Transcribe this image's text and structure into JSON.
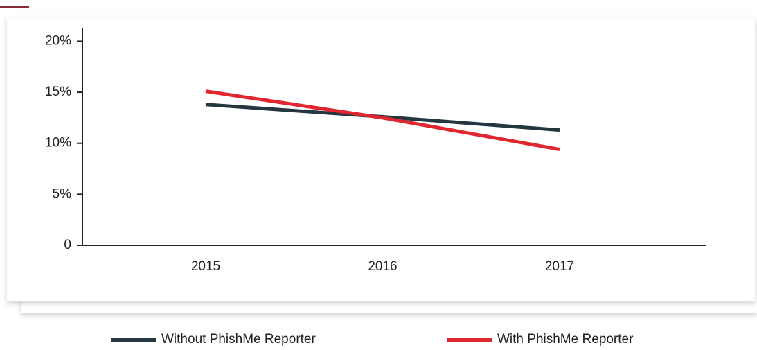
{
  "chart_data": {
    "type": "line",
    "categories": [
      "2015",
      "2016",
      "2017"
    ],
    "series": [
      {
        "name": "Without PhishMe Reporter",
        "color": "#243640",
        "values": [
          13.8,
          12.6,
          11.3
        ]
      },
      {
        "name": "With PhishMe Reporter",
        "color": "#e0262f",
        "values": [
          15.1,
          12.5,
          9.4
        ]
      }
    ],
    "ylim": [
      0,
      22
    ],
    "yticks": [
      0,
      {
        "value": 5,
        "label": "5%"
      },
      {
        "value": 10,
        "label": "10%"
      },
      {
        "value": 15,
        "label": "15%"
      },
      {
        "value": 20,
        "label": "20%"
      }
    ],
    "legend": "bottom"
  }
}
